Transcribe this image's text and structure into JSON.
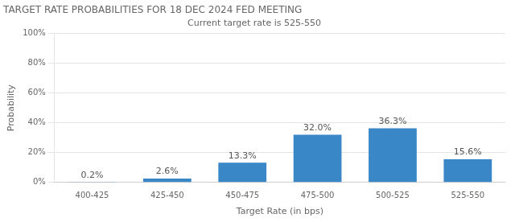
{
  "chart_data": {
    "type": "bar",
    "title": "TARGET RATE PROBABILITIES FOR 18 DEC 2024 FED MEETING",
    "subtitle": "Current target rate is 525-550",
    "categories": [
      "400-425",
      "425-450",
      "450-475",
      "475-500",
      "500-525",
      "525-550"
    ],
    "values": [
      0.2,
      2.6,
      13.3,
      32.0,
      36.3,
      15.6
    ],
    "value_labels": [
      "0.2%",
      "2.6%",
      "13.3%",
      "32.0%",
      "36.3%",
      "15.6%"
    ],
    "data_labels": true,
    "color": "#3a87c8",
    "xlabel": "Target Rate (in bps)",
    "ylabel": "Probability",
    "ylim": [
      0,
      100
    ],
    "yticks": [
      {
        "value": 0,
        "label": "0%"
      },
      {
        "value": 20,
        "label": "20%"
      },
      {
        "value": 40,
        "label": "40%"
      },
      {
        "value": 60,
        "label": "60%"
      },
      {
        "value": 80,
        "label": "80%"
      },
      {
        "value": 100,
        "label": "100%"
      }
    ],
    "grid": "y"
  }
}
